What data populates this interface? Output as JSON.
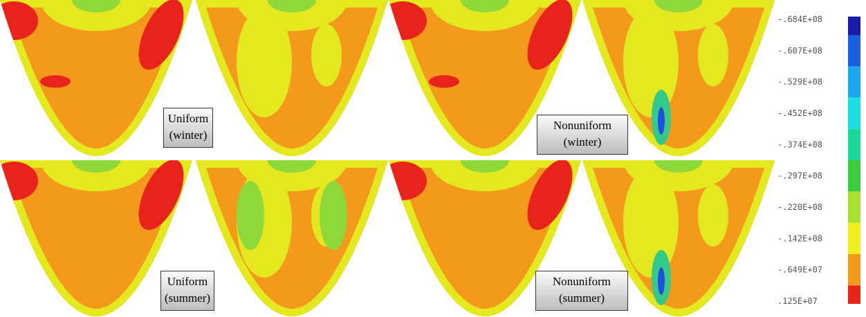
{
  "panel_labels": [
    {
      "line1": "Uniform",
      "line2": "(winter)"
    },
    {
      "line1": "Nonuniform",
      "line2": "(winter)"
    },
    {
      "line1": "Uniform",
      "line2": "(summer)"
    },
    {
      "line1": "Nonuniform",
      "line2": "(summer)"
    }
  ],
  "legend": {
    "labels": [
      "-.684E+08",
      "-.607E+08",
      "-.529E+08",
      "-.452E+08",
      "-.374E+08",
      "-.297E+08",
      "-.220E+08",
      "-.142E+08",
      "-.649E+07",
      ".125E+07"
    ]
  }
}
